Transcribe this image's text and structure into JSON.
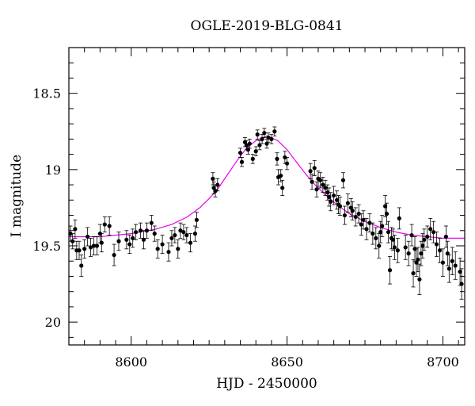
{
  "chart_data": {
    "type": "scatter",
    "title": "OGLE-2019-BLG-0841",
    "xlabel": "HJD - 2450000",
    "ylabel": "I magnitude",
    "xlim": [
      8580,
      8707
    ],
    "ylim": [
      20.15,
      18.2
    ],
    "y_inverted": true,
    "x_ticks": [
      8600,
      8650,
      8700
    ],
    "x_tick_labels": [
      "8600",
      "8650",
      "8700"
    ],
    "y_ticks": [
      18.5,
      19.0,
      19.5,
      20.0
    ],
    "y_tick_labels": [
      "18.5",
      "19",
      "19.5",
      "20"
    ],
    "grid": false,
    "legend": "none",
    "series": [
      {
        "type": "scatter_with_errorbars",
        "color": "#000000",
        "x": [
          8580.5,
          8581.2,
          8582.0,
          8582.5,
          8583.3,
          8584.0,
          8585.0,
          8586.0,
          8587.0,
          8588.0,
          8589.0,
          8590.0,
          8590.5,
          8591.5,
          8593.0,
          8594.5,
          8596.0,
          8598.5,
          8599.5,
          8600.5,
          8601.5,
          8603.0,
          8604.0,
          8605.0,
          8606.5,
          8607.5,
          8608.5,
          8610.0,
          8612.0,
          8613.0,
          8614.0,
          8615.0,
          8615.8,
          8616.8,
          8617.8,
          8619.0,
          8620.5,
          8621.0,
          8626.2,
          8626.5,
          8627.0,
          8627.7,
          8635.0,
          8635.5,
          8636.5,
          8637.0,
          8637.5,
          8638.0,
          8639.0,
          8640.0,
          8640.5,
          8641.2,
          8642.0,
          8642.7,
          8643.5,
          8644.0,
          8645.0,
          8646.0,
          8646.8,
          8647.2,
          8648.0,
          8648.5,
          8649.3,
          8650.0,
          8657.5,
          8658.0,
          8658.8,
          8659.5,
          8660.0,
          8660.7,
          8661.5,
          8662.3,
          8663.0,
          8663.5,
          8664.0,
          8665.0,
          8666.0,
          8666.5,
          8667.0,
          8668.0,
          8668.5,
          8669.5,
          8670.5,
          8671.0,
          8672.0,
          8673.0,
          8673.8,
          8674.5,
          8675.5,
          8676.5,
          8677.5,
          8678.5,
          8679.5,
          8680.0,
          8680.5,
          8681.5,
          8682.0,
          8682.5,
          8683.0,
          8683.5,
          8684.0,
          8684.5,
          8685.5,
          8686.0,
          8688.0,
          8689.0,
          8690.0,
          8690.5,
          8691.0,
          8691.5,
          8692.0,
          8692.5,
          8693.0,
          8693.5,
          8694.0,
          8695.0,
          8696.0,
          8697.0,
          8698.0,
          8699.0,
          8700.0,
          8701.0,
          8701.5,
          8702.0,
          8703.0,
          8704.0,
          8705.5,
          8706.0
        ],
        "y": [
          19.42,
          19.47,
          19.39,
          19.53,
          19.53,
          19.63,
          19.52,
          19.44,
          19.51,
          19.5,
          19.5,
          19.42,
          19.48,
          19.36,
          19.37,
          19.56,
          19.47,
          19.46,
          19.49,
          19.45,
          19.41,
          19.4,
          19.46,
          19.4,
          19.35,
          19.42,
          19.52,
          19.49,
          19.54,
          19.45,
          19.43,
          19.52,
          19.4,
          19.41,
          19.43,
          19.48,
          19.42,
          19.33,
          19.06,
          19.12,
          19.14,
          19.1,
          18.89,
          18.95,
          18.82,
          18.84,
          18.87,
          18.83,
          18.93,
          18.88,
          18.77,
          18.84,
          18.8,
          18.76,
          18.83,
          18.79,
          18.8,
          18.75,
          18.93,
          19.05,
          19.04,
          19.12,
          18.92,
          18.96,
          19.01,
          19.08,
          18.99,
          19.13,
          19.06,
          19.07,
          19.1,
          19.12,
          19.15,
          19.18,
          19.21,
          19.17,
          19.2,
          19.23,
          19.24,
          19.07,
          19.3,
          19.22,
          19.25,
          19.27,
          19.31,
          19.29,
          19.36,
          19.33,
          19.39,
          19.35,
          19.42,
          19.45,
          19.5,
          19.41,
          19.37,
          19.24,
          19.29,
          19.41,
          19.66,
          19.45,
          19.46,
          19.51,
          19.53,
          19.32,
          19.51,
          19.55,
          19.43,
          19.68,
          19.52,
          19.61,
          19.59,
          19.72,
          19.55,
          19.5,
          19.46,
          19.44,
          19.39,
          19.41,
          19.49,
          19.53,
          19.61,
          19.44,
          19.55,
          19.65,
          19.6,
          19.63,
          19.67,
          19.75
        ],
        "yerr": [
          0.05,
          0.05,
          0.06,
          0.06,
          0.06,
          0.07,
          0.06,
          0.06,
          0.06,
          0.06,
          0.06,
          0.06,
          0.06,
          0.05,
          0.06,
          0.07,
          0.06,
          0.06,
          0.06,
          0.06,
          0.05,
          0.05,
          0.06,
          0.05,
          0.05,
          0.05,
          0.06,
          0.06,
          0.06,
          0.05,
          0.05,
          0.06,
          0.05,
          0.05,
          0.05,
          0.06,
          0.05,
          0.05,
          0.04,
          0.04,
          0.04,
          0.04,
          0.03,
          0.03,
          0.03,
          0.03,
          0.03,
          0.03,
          0.03,
          0.03,
          0.03,
          0.03,
          0.03,
          0.03,
          0.03,
          0.03,
          0.03,
          0.03,
          0.04,
          0.05,
          0.04,
          0.05,
          0.04,
          0.04,
          0.05,
          0.05,
          0.05,
          0.05,
          0.05,
          0.05,
          0.05,
          0.05,
          0.05,
          0.06,
          0.06,
          0.06,
          0.06,
          0.06,
          0.06,
          0.05,
          0.06,
          0.06,
          0.06,
          0.06,
          0.06,
          0.06,
          0.07,
          0.06,
          0.07,
          0.06,
          0.07,
          0.07,
          0.08,
          0.07,
          0.07,
          0.07,
          0.07,
          0.07,
          0.09,
          0.07,
          0.07,
          0.08,
          0.08,
          0.07,
          0.08,
          0.08,
          0.07,
          0.09,
          0.08,
          0.09,
          0.08,
          0.1,
          0.08,
          0.08,
          0.07,
          0.07,
          0.07,
          0.07,
          0.08,
          0.08,
          0.09,
          0.07,
          0.08,
          0.09,
          0.09,
          0.09,
          0.09,
          0.1
        ]
      },
      {
        "type": "model_line",
        "color": "#ee00ee",
        "baseline": 19.46,
        "peak": 18.78,
        "t0": 8643.5,
        "tE": 14.0,
        "curve": [
          [
            8580,
            19.44
          ],
          [
            8590,
            19.44
          ],
          [
            8600,
            19.42
          ],
          [
            8608,
            19.39
          ],
          [
            8613,
            19.36
          ],
          [
            8618,
            19.31
          ],
          [
            8622,
            19.25
          ],
          [
            8625,
            19.19
          ],
          [
            8628,
            19.12
          ],
          [
            8631,
            19.03
          ],
          [
            8634,
            18.94
          ],
          [
            8637,
            18.86
          ],
          [
            8640,
            18.81
          ],
          [
            8643.5,
            18.78
          ],
          [
            8647,
            18.81
          ],
          [
            8650,
            18.87
          ],
          [
            8653,
            18.95
          ],
          [
            8656,
            19.03
          ],
          [
            8659,
            19.1
          ],
          [
            8662,
            19.16
          ],
          [
            8666,
            19.23
          ],
          [
            8670,
            19.29
          ],
          [
            8675,
            19.34
          ],
          [
            8680,
            19.38
          ],
          [
            8685,
            19.41
          ],
          [
            8690,
            19.43
          ],
          [
            8695,
            19.44
          ],
          [
            8700,
            19.45
          ],
          [
            8707,
            19.45
          ]
        ]
      }
    ]
  }
}
